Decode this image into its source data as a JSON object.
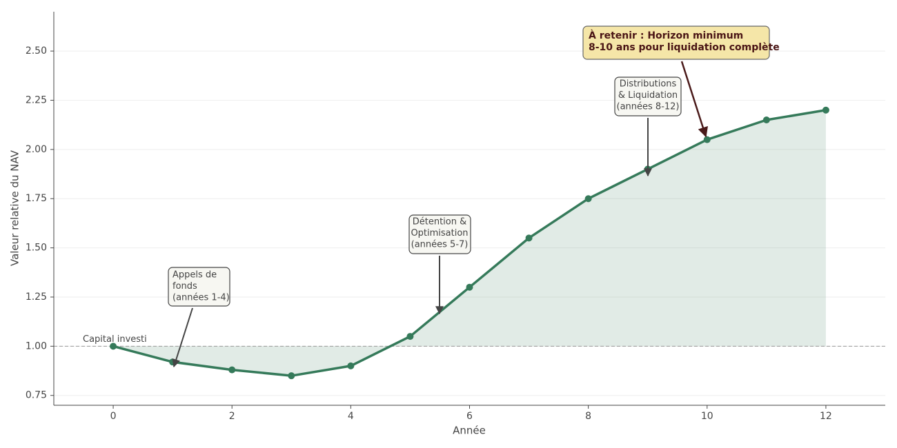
{
  "chart_data": {
    "type": "line",
    "x_label": "Année",
    "y_label": "Valeur relative du NAV",
    "x": [
      0,
      1,
      2,
      3,
      4,
      5,
      6,
      7,
      8,
      9,
      10,
      11,
      12
    ],
    "series": [
      {
        "color": "#357a5a",
        "values": [
          1.0,
          0.92,
          0.88,
          0.85,
          0.9,
          1.05,
          1.3,
          1.55,
          1.75,
          1.9,
          2.05,
          2.15,
          2.2
        ]
      }
    ],
    "xlim": [
      -1,
      13
    ],
    "xticks": [
      0,
      2,
      4,
      6,
      8,
      10,
      12
    ],
    "ylim": [
      0.7,
      2.7
    ],
    "yticks": [
      0.75,
      {
        "value": 1,
        "label": "1.00"
      },
      1.25,
      {
        "value": 1.5,
        "label": "1.50"
      },
      1.75,
      {
        "value": 2,
        "label": "2.00"
      },
      2.25,
      {
        "value": 2.5,
        "label": "2.50"
      }
    ],
    "grid": true,
    "reference_line": {
      "value": 1,
      "label": "Capital investi"
    },
    "annotations": [
      {
        "text": [
          "Appels de",
          "fonds",
          "(années 1-4)"
        ]
      },
      {
        "text": [
          "Détention &",
          "Optimisation",
          "(années 5-7)"
        ]
      },
      {
        "text": [
          "Distributions",
          "& Liquidation",
          "(années 8-12)"
        ]
      },
      {
        "text": [
          "À retenir : Horizon minimum",
          "8-10 ans pour liquidation complète"
        ]
      }
    ]
  }
}
